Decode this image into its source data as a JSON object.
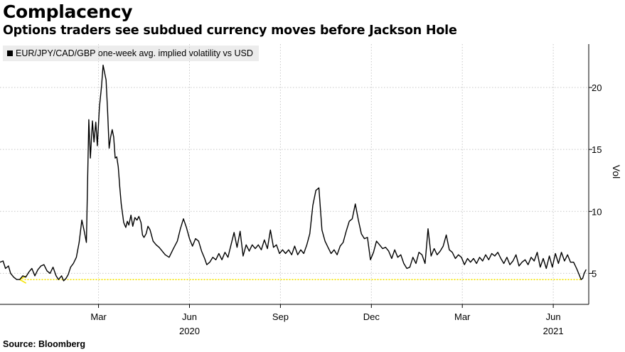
{
  "header": {
    "title": "Complacency",
    "subtitle": "Options traders see subdued currency moves before Jackson Hole"
  },
  "footer": {
    "source": "Source: Bloomberg"
  },
  "chart_data": {
    "type": "line",
    "title": "Complacency",
    "subtitle": "Options traders see subdued currency moves before Jackson Hole",
    "ylabel": "Vol",
    "xlabel": "",
    "ylim": [
      2.5,
      23.5
    ],
    "yticks": [
      5,
      10,
      15,
      20
    ],
    "x_unit": "months since 2020-01-01",
    "xlim": [
      -1.25,
      18.17
    ],
    "xticks": [
      {
        "x": 2,
        "label": "Mar"
      },
      {
        "x": 5,
        "label": "Jun"
      },
      {
        "x": 8,
        "label": "Sep"
      },
      {
        "x": 11,
        "label": "Dec"
      },
      {
        "x": 14,
        "label": "Mar"
      },
      {
        "x": 17,
        "label": "Jun"
      }
    ],
    "year_labels": [
      {
        "x": 5,
        "label": "2020"
      },
      {
        "x": 17,
        "label": "2021"
      }
    ],
    "grid": true,
    "legend": "top-left",
    "colors": {
      "series": "#000000",
      "reference": "#f5e400",
      "grid": "#c8c8c8"
    },
    "reference_line": {
      "value": 4.5,
      "x_from": 17.9,
      "x_to": -0.6,
      "style": "dashed-arrow",
      "label": ""
    },
    "series": [
      {
        "name": "EUR/JPY/CAD/GBP one-week avg. implied volatility vs USD",
        "points": [
          [
            -1.25,
            5.9
          ],
          [
            -1.15,
            6.0
          ],
          [
            -1.07,
            5.4
          ],
          [
            -0.97,
            5.6
          ],
          [
            -0.9,
            5.0
          ],
          [
            -0.8,
            4.7
          ],
          [
            -0.7,
            4.5
          ],
          [
            -0.6,
            4.5
          ],
          [
            -0.5,
            4.8
          ],
          [
            -0.4,
            4.7
          ],
          [
            -0.3,
            5.1
          ],
          [
            -0.2,
            5.4
          ],
          [
            -0.1,
            4.8
          ],
          [
            0.0,
            5.3
          ],
          [
            0.1,
            5.6
          ],
          [
            0.2,
            5.7
          ],
          [
            0.3,
            5.2
          ],
          [
            0.4,
            5.0
          ],
          [
            0.5,
            5.5
          ],
          [
            0.6,
            4.8
          ],
          [
            0.68,
            4.5
          ],
          [
            0.78,
            4.8
          ],
          [
            0.85,
            4.4
          ],
          [
            0.93,
            4.6
          ],
          [
            1.0,
            4.9
          ],
          [
            1.08,
            5.5
          ],
          [
            1.17,
            5.8
          ],
          [
            1.27,
            6.3
          ],
          [
            1.36,
            7.5
          ],
          [
            1.45,
            9.3
          ],
          [
            1.53,
            8.4
          ],
          [
            1.6,
            7.5
          ],
          [
            1.68,
            17.4
          ],
          [
            1.73,
            14.3
          ],
          [
            1.8,
            17.3
          ],
          [
            1.85,
            15.6
          ],
          [
            1.91,
            17.2
          ],
          [
            1.96,
            15.3
          ],
          [
            2.03,
            18.4
          ],
          [
            2.1,
            20.1
          ],
          [
            2.15,
            21.8
          ],
          [
            2.2,
            21.2
          ],
          [
            2.25,
            20.6
          ],
          [
            2.3,
            18.0
          ],
          [
            2.35,
            15.1
          ],
          [
            2.4,
            16.0
          ],
          [
            2.45,
            16.6
          ],
          [
            2.5,
            16.0
          ],
          [
            2.55,
            14.3
          ],
          [
            2.6,
            14.4
          ],
          [
            2.65,
            13.6
          ],
          [
            2.7,
            12.0
          ],
          [
            2.75,
            10.6
          ],
          [
            2.83,
            9.1
          ],
          [
            2.9,
            8.7
          ],
          [
            2.95,
            9.2
          ],
          [
            3.0,
            8.9
          ],
          [
            3.07,
            9.7
          ],
          [
            3.13,
            8.8
          ],
          [
            3.2,
            9.5
          ],
          [
            3.27,
            9.3
          ],
          [
            3.33,
            9.6
          ],
          [
            3.4,
            9.1
          ],
          [
            3.45,
            8.1
          ],
          [
            3.5,
            7.9
          ],
          [
            3.57,
            8.2
          ],
          [
            3.63,
            8.8
          ],
          [
            3.7,
            8.5
          ],
          [
            3.8,
            7.6
          ],
          [
            3.9,
            7.3
          ],
          [
            4.0,
            7.1
          ],
          [
            4.1,
            6.8
          ],
          [
            4.2,
            6.5
          ],
          [
            4.33,
            6.3
          ],
          [
            4.47,
            7.0
          ],
          [
            4.6,
            7.6
          ],
          [
            4.7,
            8.6
          ],
          [
            4.8,
            9.4
          ],
          [
            4.9,
            8.7
          ],
          [
            5.0,
            7.8
          ],
          [
            5.1,
            7.2
          ],
          [
            5.2,
            7.8
          ],
          [
            5.3,
            7.6
          ],
          [
            5.4,
            6.8
          ],
          [
            5.5,
            6.2
          ],
          [
            5.57,
            5.7
          ],
          [
            5.67,
            5.9
          ],
          [
            5.77,
            6.3
          ],
          [
            5.87,
            6.1
          ],
          [
            5.97,
            6.6
          ],
          [
            6.07,
            6.1
          ],
          [
            6.17,
            6.7
          ],
          [
            6.27,
            6.3
          ],
          [
            6.37,
            7.3
          ],
          [
            6.47,
            8.3
          ],
          [
            6.57,
            7.1
          ],
          [
            6.67,
            8.4
          ],
          [
            6.77,
            6.4
          ],
          [
            6.87,
            7.3
          ],
          [
            6.97,
            6.8
          ],
          [
            7.07,
            7.3
          ],
          [
            7.17,
            7.0
          ],
          [
            7.27,
            7.3
          ],
          [
            7.37,
            6.9
          ],
          [
            7.47,
            7.7
          ],
          [
            7.57,
            7.0
          ],
          [
            7.67,
            8.5
          ],
          [
            7.77,
            7.1
          ],
          [
            7.87,
            7.3
          ],
          [
            7.97,
            6.6
          ],
          [
            8.07,
            6.9
          ],
          [
            8.17,
            6.6
          ],
          [
            8.27,
            6.9
          ],
          [
            8.37,
            6.5
          ],
          [
            8.47,
            7.2
          ],
          [
            8.57,
            6.5
          ],
          [
            8.67,
            6.9
          ],
          [
            8.77,
            6.6
          ],
          [
            8.87,
            7.3
          ],
          [
            8.97,
            8.2
          ],
          [
            9.07,
            10.5
          ],
          [
            9.17,
            11.7
          ],
          [
            9.27,
            11.9
          ],
          [
            9.37,
            8.5
          ],
          [
            9.47,
            7.6
          ],
          [
            9.57,
            7.1
          ],
          [
            9.67,
            6.6
          ],
          [
            9.77,
            6.9
          ],
          [
            9.87,
            6.5
          ],
          [
            9.97,
            7.2
          ],
          [
            10.07,
            7.5
          ],
          [
            10.17,
            8.4
          ],
          [
            10.27,
            9.2
          ],
          [
            10.37,
            9.4
          ],
          [
            10.47,
            10.6
          ],
          [
            10.57,
            9.3
          ],
          [
            10.67,
            8.2
          ],
          [
            10.77,
            7.8
          ],
          [
            10.87,
            7.9
          ],
          [
            10.97,
            6.1
          ],
          [
            11.07,
            6.7
          ],
          [
            11.17,
            7.6
          ],
          [
            11.27,
            7.3
          ],
          [
            11.37,
            7.0
          ],
          [
            11.47,
            7.1
          ],
          [
            11.57,
            6.8
          ],
          [
            11.67,
            6.2
          ],
          [
            11.77,
            6.9
          ],
          [
            11.87,
            6.3
          ],
          [
            11.97,
            6.5
          ],
          [
            12.07,
            5.8
          ],
          [
            12.17,
            5.4
          ],
          [
            12.27,
            5.5
          ],
          [
            12.37,
            6.3
          ],
          [
            12.47,
            5.8
          ],
          [
            12.57,
            6.7
          ],
          [
            12.67,
            6.5
          ],
          [
            12.77,
            5.8
          ],
          [
            12.87,
            8.6
          ],
          [
            12.97,
            6.4
          ],
          [
            13.07,
            7.0
          ],
          [
            13.17,
            6.5
          ],
          [
            13.27,
            6.8
          ],
          [
            13.37,
            7.2
          ],
          [
            13.47,
            8.1
          ],
          [
            13.57,
            6.9
          ],
          [
            13.67,
            6.7
          ],
          [
            13.77,
            6.2
          ],
          [
            13.87,
            6.5
          ],
          [
            13.97,
            6.3
          ],
          [
            14.07,
            5.7
          ],
          [
            14.17,
            6.2
          ],
          [
            14.27,
            5.9
          ],
          [
            14.37,
            6.2
          ],
          [
            14.47,
            5.8
          ],
          [
            14.57,
            6.3
          ],
          [
            14.67,
            6.0
          ],
          [
            14.77,
            6.5
          ],
          [
            14.87,
            6.1
          ],
          [
            14.97,
            6.6
          ],
          [
            15.07,
            6.4
          ],
          [
            15.17,
            6.7
          ],
          [
            15.27,
            6.2
          ],
          [
            15.37,
            5.8
          ],
          [
            15.47,
            6.3
          ],
          [
            15.57,
            5.7
          ],
          [
            15.67,
            6.0
          ],
          [
            15.77,
            6.5
          ],
          [
            15.87,
            5.6
          ],
          [
            15.97,
            5.9
          ],
          [
            16.07,
            6.1
          ],
          [
            16.17,
            5.7
          ],
          [
            16.27,
            6.3
          ],
          [
            16.37,
            6.0
          ],
          [
            16.47,
            6.7
          ],
          [
            16.57,
            5.5
          ],
          [
            16.67,
            6.2
          ],
          [
            16.77,
            5.4
          ],
          [
            16.87,
            6.4
          ],
          [
            16.97,
            5.5
          ],
          [
            17.07,
            6.6
          ],
          [
            17.17,
            5.8
          ],
          [
            17.27,
            6.7
          ],
          [
            17.37,
            6.0
          ],
          [
            17.47,
            6.5
          ],
          [
            17.57,
            5.9
          ],
          [
            17.67,
            5.9
          ],
          [
            17.77,
            5.4
          ],
          [
            17.87,
            4.8
          ],
          [
            17.92,
            4.5
          ],
          [
            17.97,
            4.6
          ],
          [
            18.02,
            5.0
          ],
          [
            18.08,
            5.3
          ]
        ]
      }
    ]
  }
}
